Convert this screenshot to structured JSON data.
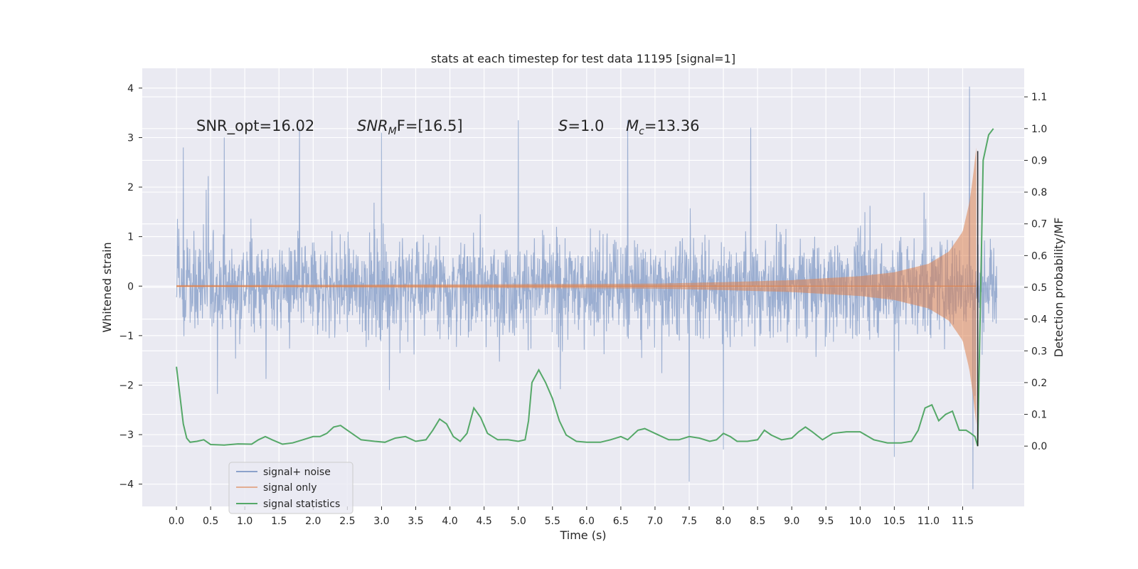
{
  "chart_data": {
    "type": "line",
    "title": "stats at each timestep for test data 11195 [signal=1]",
    "xlabel": "Time (s)",
    "ylabel": "Whitened strain",
    "y2label": "Detection probability/MF",
    "xlim": [
      -0.5,
      12.4
    ],
    "ylim": [
      -4.45,
      4.4
    ],
    "y2lim": [
      -0.19,
      1.19
    ],
    "xticks": [
      0.0,
      0.5,
      1.0,
      1.5,
      2.0,
      2.5,
      3.0,
      3.5,
      4.0,
      4.5,
      5.0,
      5.5,
      6.0,
      6.5,
      7.0,
      7.5,
      8.0,
      8.5,
      9.0,
      9.5,
      10.0,
      10.5,
      11.0,
      11.5
    ],
    "xtick_labels": [
      "0.0",
      "0.5",
      "1.0",
      "1.5",
      "2.0",
      "2.5",
      "3.0",
      "3.5",
      "4.0",
      "4.5",
      "5.0",
      "5.5",
      "6.0",
      "6.5",
      "7.0",
      "7.5",
      "8.0",
      "8.5",
      "9.0",
      "9.5",
      "10.0",
      "10.5",
      "11.0",
      "11.5"
    ],
    "yticks": [
      -4,
      -3,
      -2,
      -1,
      0,
      1,
      2,
      3,
      4
    ],
    "ytick_labels": [
      "−4",
      "−3",
      "−2",
      "−1",
      "0",
      "1",
      "2",
      "3",
      "4"
    ],
    "y2ticks": [
      0.0,
      0.1,
      0.2,
      0.3,
      0.4,
      0.5,
      0.6,
      0.7,
      0.8,
      0.9,
      1.0,
      1.1
    ],
    "y2tick_labels": [
      "0.0",
      "0.1",
      "0.2",
      "0.3",
      "0.4",
      "0.5",
      "0.6",
      "0.7",
      "0.8",
      "0.9",
      "1.0",
      "1.1"
    ],
    "grid": true,
    "legend_position": "lower-left",
    "annotations": {
      "snr_opt": "SNR_opt=16.02",
      "snr_mf_main": "SNR",
      "snr_mf_sub": "M",
      "snr_mf_rest": "F=[16.5]",
      "s_main": "S",
      "s_rest": "=1.0",
      "mc_main": "M",
      "mc_sub": "c",
      "mc_rest": "=13.36"
    },
    "series": [
      {
        "name": "signal+ noise",
        "color": "#4c72b0",
        "axis": "left",
        "description_values": {
          "x_range": [
            0.0,
            12.0
          ],
          "typical_band": [
            -1.3,
            1.3
          ],
          "max": 4.03,
          "min": -4.1,
          "peaks": [
            [
              0.1,
              2.8
            ],
            [
              0.7,
              3.0
            ],
            [
              1.8,
              3.2
            ],
            [
              3.0,
              3.1
            ],
            [
              5.0,
              3.35
            ],
            [
              6.6,
              3.35
            ],
            [
              8.4,
              3.2
            ],
            [
              11.6,
              4.03
            ],
            [
              11.65,
              -4.1
            ],
            [
              7.5,
              -3.95
            ],
            [
              10.5,
              -3.45
            ],
            [
              8.0,
              -3.3
            ]
          ]
        }
      },
      {
        "name": "signal only",
        "color": "#dd8452",
        "axis": "left",
        "envelope": [
          [
            0.0,
            0.02
          ],
          [
            5.0,
            0.04
          ],
          [
            7.0,
            0.05
          ],
          [
            8.0,
            0.08
          ],
          [
            9.0,
            0.12
          ],
          [
            10.0,
            0.2
          ],
          [
            10.5,
            0.28
          ],
          [
            11.0,
            0.45
          ],
          [
            11.3,
            0.7
          ],
          [
            11.5,
            1.1
          ],
          [
            11.6,
            1.7
          ],
          [
            11.65,
            2.2
          ],
          [
            11.7,
            2.8
          ]
        ]
      },
      {
        "name": "signal statistics",
        "color": "#55a868",
        "axis": "right",
        "x": [
          0.0,
          0.05,
          0.1,
          0.15,
          0.2,
          0.3,
          0.4,
          0.5,
          0.7,
          0.9,
          1.1,
          1.2,
          1.3,
          1.4,
          1.55,
          1.7,
          1.85,
          2.0,
          2.1,
          2.2,
          2.3,
          2.4,
          2.5,
          2.7,
          2.9,
          3.05,
          3.2,
          3.35,
          3.5,
          3.65,
          3.75,
          3.85,
          3.95,
          4.05,
          4.15,
          4.25,
          4.35,
          4.45,
          4.55,
          4.7,
          4.85,
          5.0,
          5.1,
          5.15,
          5.2,
          5.3,
          5.4,
          5.5,
          5.6,
          5.7,
          5.85,
          6.0,
          6.2,
          6.35,
          6.5,
          6.6,
          6.75,
          6.85,
          7.0,
          7.2,
          7.35,
          7.5,
          7.65,
          7.8,
          7.9,
          8.0,
          8.1,
          8.2,
          8.35,
          8.5,
          8.6,
          8.7,
          8.85,
          9.0,
          9.1,
          9.2,
          9.3,
          9.45,
          9.6,
          9.8,
          10.0,
          10.2,
          10.4,
          10.6,
          10.75,
          10.85,
          10.95,
          11.05,
          11.15,
          11.25,
          11.35,
          11.45,
          11.55,
          11.62,
          11.68,
          11.72,
          11.8,
          11.88,
          11.95
        ],
        "y": [
          0.25,
          0.16,
          0.07,
          0.025,
          0.012,
          0.015,
          0.02,
          0.005,
          0.003,
          0.007,
          0.006,
          0.02,
          0.03,
          0.02,
          0.006,
          0.01,
          0.02,
          0.03,
          0.03,
          0.04,
          0.06,
          0.065,
          0.05,
          0.02,
          0.015,
          0.012,
          0.025,
          0.03,
          0.015,
          0.02,
          0.05,
          0.085,
          0.07,
          0.03,
          0.015,
          0.04,
          0.12,
          0.09,
          0.04,
          0.02,
          0.02,
          0.015,
          0.02,
          0.08,
          0.2,
          0.24,
          0.2,
          0.15,
          0.08,
          0.035,
          0.015,
          0.012,
          0.012,
          0.02,
          0.03,
          0.02,
          0.05,
          0.055,
          0.04,
          0.02,
          0.02,
          0.03,
          0.025,
          0.015,
          0.02,
          0.04,
          0.03,
          0.015,
          0.015,
          0.02,
          0.05,
          0.035,
          0.02,
          0.025,
          0.045,
          0.06,
          0.045,
          0.02,
          0.04,
          0.045,
          0.045,
          0.02,
          0.01,
          0.01,
          0.015,
          0.05,
          0.12,
          0.13,
          0.08,
          0.1,
          0.11,
          0.05,
          0.05,
          0.04,
          0.03,
          0.0,
          0.9,
          0.98,
          1.0
        ]
      }
    ]
  }
}
